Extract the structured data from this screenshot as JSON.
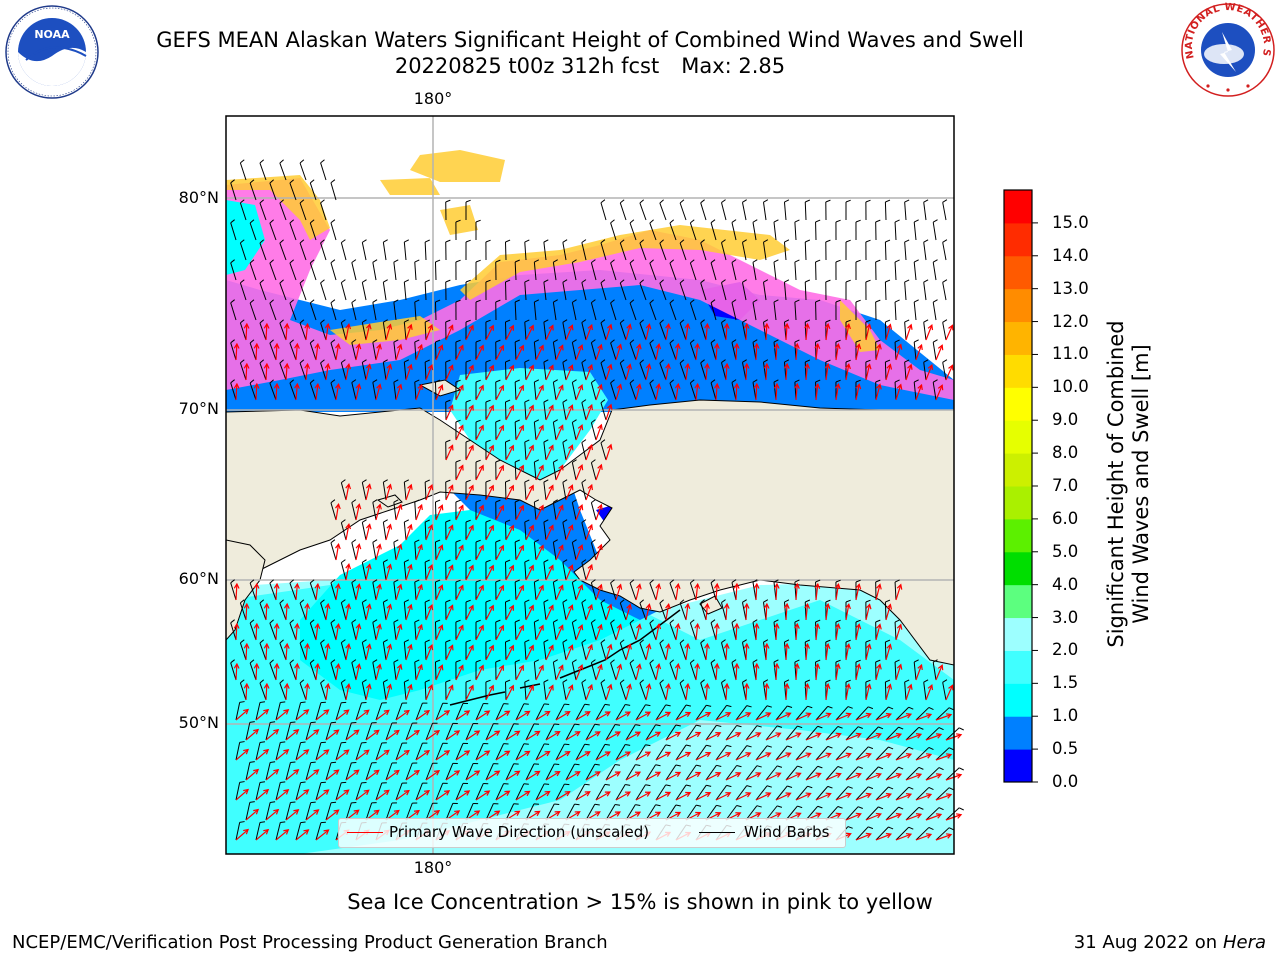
{
  "header": {
    "title_line1": "GEFS MEAN Alaskan Waters Significant Height of Combined Wind Waves and Swell",
    "run": "20220825 t00z 312h fcst",
    "max_label": "Max: 2.85"
  },
  "logos": {
    "left": {
      "icon": "noaa-logo",
      "text": "NOAA"
    },
    "right": {
      "icon": "national-weather-service-logo",
      "text": "NATIONAL WEATHER SERVICE"
    }
  },
  "map": {
    "lon_label_top": "180°",
    "lon_label_bottom": "180°",
    "lat_labels": [
      "80°N",
      "70°N",
      "60°N",
      "50°N"
    ],
    "colors": {
      "land": "#efecdc",
      "grid": "#b3b3b3",
      "wave_arrow": "#ff0000",
      "wind_barb": "#000000"
    }
  },
  "colorbar": {
    "title": "Significant Height of Combined Wind Waves and Swell [m]",
    "ticks": [
      "0.0",
      "0.5",
      "1.0",
      "1.5",
      "2.0",
      "3.0",
      "4.0",
      "5.0",
      "6.0",
      "7.0",
      "8.0",
      "9.0",
      "10.0",
      "11.0",
      "12.0",
      "13.0",
      "14.0",
      "15.0"
    ],
    "colors": [
      "#0000ff",
      "#0080ff",
      "#00ffff",
      "#40ffff",
      "#9dffff",
      "#5cff7f",
      "#00de00",
      "#5cf000",
      "#aaf000",
      "#ccf000",
      "#e6ff00",
      "#ffff00",
      "#ffdc00",
      "#ffb400",
      "#ff8c00",
      "#ff5a00",
      "#ff2c00",
      "#ff0000"
    ]
  },
  "legend": {
    "wave_label": "Primary Wave Direction (unscaled)",
    "wind_label": "Wind Barbs"
  },
  "ice_note": "Sea Ice Concentration > 15% is shown in pink to yellow",
  "footer": {
    "left": "NCEP/EMC/Verification Post Processing Product Generation Branch",
    "date": "31 Aug 2022 on",
    "machine": "Hera"
  }
}
